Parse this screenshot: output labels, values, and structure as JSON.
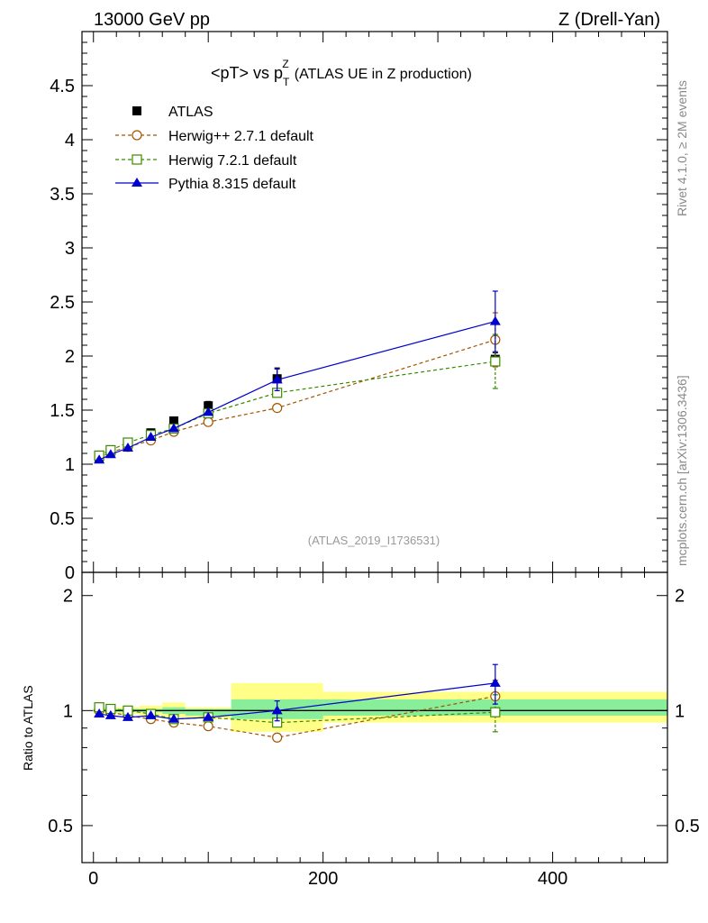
{
  "header": {
    "left": "13000 GeV pp",
    "right": "Z (Drell-Yan)"
  },
  "side_labels": {
    "rivet": "Rivet 4.1.0, ≥ 2M events",
    "mcplots": "mcplots.cern.ch [arXiv:1306.3436]"
  },
  "title": {
    "main": "<pT> vs p",
    "sup": "Z",
    "sub": "T",
    "suffix": "(ATLAS UE in Z production)"
  },
  "analysis_id": "(ATLAS_2019_I1736531)",
  "colors": {
    "atlas": "#000000",
    "herwigpp": "#a35400",
    "herwig7": "#3a8a00",
    "pythia": "#0000cc",
    "band_yellow": "#ffff88",
    "band_green": "#88ee99"
  },
  "chart_data": {
    "type": "line",
    "xlim": [
      -10,
      500
    ],
    "x_ticks": [
      0,
      200,
      400
    ],
    "x_tick_labels": [
      "0",
      "200",
      "400"
    ],
    "main_panel": {
      "ylim": [
        0,
        5
      ],
      "y_ticks": [
        0,
        0.5,
        1,
        1.5,
        2,
        2.5,
        3,
        3.5,
        4,
        4.5
      ],
      "y_tick_labels": [
        "0",
        "0.5",
        "1",
        "1.5",
        "2",
        "2.5",
        "3",
        "3.5",
        "4",
        "4.5"
      ]
    },
    "ratio_panel": {
      "ylabel": "Ratio to ATLAS",
      "ylim": [
        0.4,
        2.3
      ],
      "y_ticks": [
        0.5,
        1,
        2
      ],
      "y_tick_labels": [
        "0.5",
        "1",
        "2"
      ]
    },
    "bin_edges": [
      0,
      10,
      20,
      40,
      60,
      80,
      120,
      200,
      500
    ],
    "legend": [
      "ATLAS",
      "Herwig++ 2.7.1 default",
      "Herwig 7.2.1 default",
      "Pythia 8.315 default"
    ],
    "series": [
      {
        "name": "ATLAS",
        "style": "square",
        "x": [
          5,
          15,
          30,
          50,
          70,
          100,
          160,
          350
        ],
        "y": [
          1.06,
          1.12,
          1.2,
          1.29,
          1.4,
          1.54,
          1.79,
          1.97
        ],
        "err": [
          0.02,
          0.02,
          0.02,
          0.02,
          0.03,
          0.04,
          0.1,
          0.06
        ]
      },
      {
        "name": "Herwig++ 2.7.1 default",
        "style": "open-circle",
        "x": [
          5,
          15,
          30,
          50,
          70,
          100,
          160,
          350
        ],
        "y": [
          1.06,
          1.11,
          1.16,
          1.22,
          1.3,
          1.39,
          1.52,
          2.15
        ],
        "err": [
          0,
          0,
          0,
          0,
          0,
          0,
          0,
          0.25
        ],
        "ratio": [
          1.0,
          0.99,
          0.97,
          0.95,
          0.93,
          0.91,
          0.85,
          1.09
        ],
        "ratio_err": [
          0,
          0,
          0,
          0,
          0,
          0,
          0,
          0.11
        ]
      },
      {
        "name": "Herwig 7.2.1 default",
        "style": "open-square",
        "x": [
          5,
          15,
          30,
          50,
          70,
          100,
          160,
          350
        ],
        "y": [
          1.08,
          1.13,
          1.2,
          1.27,
          1.33,
          1.47,
          1.66,
          1.95
        ],
        "err": [
          0,
          0,
          0,
          0,
          0,
          0,
          0,
          0.25
        ],
        "ratio": [
          1.02,
          1.01,
          1.0,
          0.98,
          0.95,
          0.96,
          0.93,
          0.99
        ],
        "ratio_err": [
          0,
          0,
          0,
          0,
          0,
          0,
          0,
          0.11
        ]
      },
      {
        "name": "Pythia 8.315 default",
        "style": "filled-triangle",
        "x": [
          5,
          15,
          30,
          50,
          70,
          100,
          160,
          350
        ],
        "y": [
          1.04,
          1.09,
          1.15,
          1.25,
          1.33,
          1.48,
          1.78,
          2.32
        ],
        "err": [
          0,
          0,
          0,
          0,
          0,
          0,
          0.1,
          0.28
        ],
        "ratio": [
          0.98,
          0.97,
          0.96,
          0.97,
          0.95,
          0.96,
          1.0,
          1.18
        ],
        "ratio_err": [
          0,
          0,
          0,
          0,
          0,
          0,
          0.06,
          0.14
        ]
      }
    ],
    "ratio_bands": {
      "yellow": [
        [
          0.98,
          1.02
        ],
        [
          0.98,
          1.02
        ],
        [
          0.98,
          1.02
        ],
        [
          0.97,
          1.03
        ],
        [
          0.96,
          1.05
        ],
        [
          0.95,
          1.02
        ],
        [
          0.88,
          1.18
        ],
        [
          0.93,
          1.12
        ]
      ],
      "green": [
        [
          0.99,
          1.01
        ],
        [
          0.99,
          1.01
        ],
        [
          0.99,
          1.01
        ],
        [
          0.99,
          1.01
        ],
        [
          0.98,
          1.02
        ],
        [
          0.97,
          1.01
        ],
        [
          0.95,
          1.07
        ],
        [
          0.97,
          1.07
        ]
      ]
    }
  }
}
